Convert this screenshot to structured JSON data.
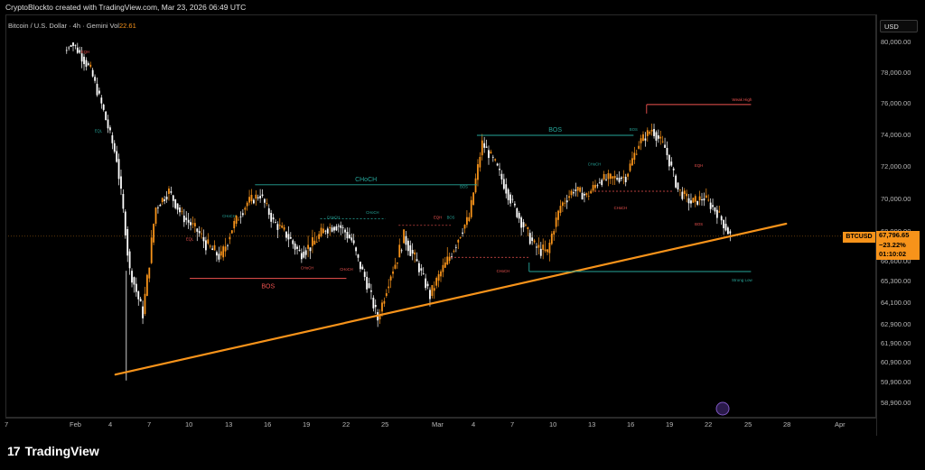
{
  "header": {
    "text": "CryptoBlockto created with TradingView.com, Mar 23, 2026 06:49 UTC"
  },
  "symbol": {
    "name": "Bitcoin / U.S. Dollar · 4h · Gemini",
    "vol_label": "Vol",
    "vol_value": "22.61"
  },
  "price_axis": {
    "currency_label": "USD",
    "ticks": [
      "80,000.00",
      "78,000.00",
      "76,000.00",
      "74,000.00",
      "72,000.00",
      "70,000.00",
      "68,000.00",
      "66,600.00",
      "65,300.00",
      "64,100.00",
      "62,900.00",
      "61,900.00",
      "60,900.00",
      "59,900.00",
      "58,900.00"
    ]
  },
  "time_axis": {
    "ticks": [
      "7",
      "Feb",
      "4",
      "7",
      "10",
      "13",
      "16",
      "19",
      "22",
      "25",
      "Mar",
      "4",
      "7",
      "10",
      "13",
      "16",
      "19",
      "22",
      "25",
      "28",
      "Apr"
    ]
  },
  "current_price": {
    "symbol_tag": "BTCUSD",
    "price": "67,796.65",
    "change": "−23.22%",
    "countdown": "01:10:02"
  },
  "annotations": {
    "bos_labels": [
      "BOS",
      "BOS"
    ],
    "choch_label": "CHoCH",
    "weak_high": "Weak High",
    "strong_low": "Strong Low",
    "small_choch": [
      "CHoCH",
      "CHoCH",
      "CHoCH",
      "CHoCH",
      "CHoCH",
      "CHoCH",
      "CHoCH",
      "CHoCH"
    ],
    "small_bos": [
      "BOS",
      "BOS",
      "BOS",
      "BOS",
      "BOS",
      "BOS"
    ],
    "small_eqh": [
      "EQH",
      "EQH",
      "EQH"
    ],
    "small_eql": [
      "EQL",
      "EQL"
    ]
  },
  "colors": {
    "bull": "#f7931a",
    "bear": "#ffffff",
    "trendline": "#f7931a",
    "bull_struct": "#26a69a",
    "bear_struct": "#ef5350"
  },
  "watermark": {
    "text": "TradingView"
  },
  "chart_data": {
    "type": "candlestick",
    "title": "",
    "xlabel": "",
    "ylabel": "",
    "timeframe": "4h",
    "ylim": [
      58400,
      81500
    ],
    "series": [
      {
        "name": "BTCUSD",
        "closes_by_day": [
          {
            "d": "Feb 1",
            "c": 79500
          },
          {
            "d": "Feb 2",
            "c": 78200
          },
          {
            "d": "Feb 3",
            "c": 75500
          },
          {
            "d": "Feb 4",
            "c": 72500
          },
          {
            "d": "Feb 5",
            "c": 66000
          },
          {
            "d": "Feb 6",
            "c": 63500
          },
          {
            "d": "Feb 7",
            "c": 69500
          },
          {
            "d": "Feb 8",
            "c": 70500
          },
          {
            "d": "Feb 9",
            "c": 69000
          },
          {
            "d": "Feb 10",
            "c": 68200
          },
          {
            "d": "Feb 11",
            "c": 67300
          },
          {
            "d": "Feb 12",
            "c": 66800
          },
          {
            "d": "Feb 13",
            "c": 68500
          },
          {
            "d": "Feb 14",
            "c": 69800
          },
          {
            "d": "Feb 15",
            "c": 70300
          },
          {
            "d": "Feb 16",
            "c": 68600
          },
          {
            "d": "Feb 17",
            "c": 67900
          },
          {
            "d": "Feb 18",
            "c": 67000
          },
          {
            "d": "Feb 19",
            "c": 67400
          },
          {
            "d": "Feb 20",
            "c": 68200
          },
          {
            "d": "Feb 21",
            "c": 68400
          },
          {
            "d": "Feb 22",
            "c": 67600
          },
          {
            "d": "Feb 23",
            "c": 65600
          },
          {
            "d": "Feb 24",
            "c": 63200
          },
          {
            "d": "Feb 25",
            "c": 65800
          },
          {
            "d": "Feb 26",
            "c": 67800
          },
          {
            "d": "Feb 27",
            "c": 66500
          },
          {
            "d": "Feb 28",
            "c": 64500
          },
          {
            "d": "Mar 1",
            "c": 66200
          },
          {
            "d": "Mar 2",
            "c": 67500
          },
          {
            "d": "Mar 3",
            "c": 68900
          },
          {
            "d": "Mar 4",
            "c": 73500
          },
          {
            "d": "Mar 5",
            "c": 72200
          },
          {
            "d": "Mar 6",
            "c": 70300
          },
          {
            "d": "Mar 7",
            "c": 68600
          },
          {
            "d": "Mar 8",
            "c": 67300
          },
          {
            "d": "Mar 9",
            "c": 67000
          },
          {
            "d": "Mar 10",
            "c": 69600
          },
          {
            "d": "Mar 11",
            "c": 70600
          },
          {
            "d": "Mar 12",
            "c": 70200
          },
          {
            "d": "Mar 13",
            "c": 71200
          },
          {
            "d": "Mar 14",
            "c": 71300
          },
          {
            "d": "Mar 15",
            "c": 71400
          },
          {
            "d": "Mar 16",
            "c": 73500
          },
          {
            "d": "Mar 17",
            "c": 74400
          },
          {
            "d": "Mar 18",
            "c": 73200
          },
          {
            "d": "Mar 19",
            "c": 70600
          },
          {
            "d": "Mar 20",
            "c": 69800
          },
          {
            "d": "Mar 21",
            "c": 70100
          },
          {
            "d": "Mar 22",
            "c": 69200
          },
          {
            "d": "Mar 23",
            "c": 67800
          }
        ]
      }
    ],
    "trendline": {
      "from": {
        "d": "Feb 5",
        "p": 60300
      },
      "to": {
        "d": "Mar 27",
        "p": 68500
      }
    },
    "levels": [
      {
        "label": "CHoCH",
        "p": 70900,
        "from": "Feb 15",
        "to": "Mar 4"
      },
      {
        "label": "BOS",
        "p": 74000,
        "from": "Mar 4",
        "to": "Mar 16"
      },
      {
        "label": "BOS",
        "p": 65500,
        "from": "Feb 10",
        "to": "Feb 22"
      },
      {
        "label": "Weak High",
        "p": 75950,
        "from": "Mar 17",
        "to": "Mar 25"
      },
      {
        "label": "Strong Low",
        "p": 65950,
        "from": "Mar 8",
        "to": "Mar 25"
      }
    ]
  }
}
